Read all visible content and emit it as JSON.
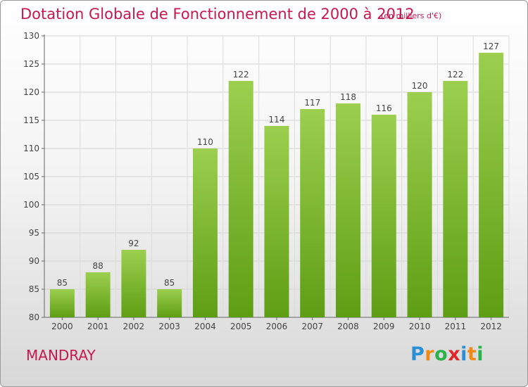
{
  "header": {
    "title": "Dotation Globale de Fonctionnement de 2000 à 2012",
    "unit": "(en milliers d'€)"
  },
  "footer": {
    "commune": "MANDRAY",
    "logo_letters": [
      "P",
      "r",
      "o",
      "x",
      "i",
      "t",
      "i"
    ],
    "logo_colors": [
      "#2b8fd6",
      "#f08a16",
      "#2bb24a",
      "#e0262b",
      "#2b8fd6",
      "#f08a16",
      "#2bb24a"
    ]
  },
  "chart_data": {
    "type": "bar",
    "categories": [
      "2000",
      "2001",
      "2002",
      "2003",
      "2004",
      "2005",
      "2006",
      "2007",
      "2008",
      "2009",
      "2010",
      "2011",
      "2012"
    ],
    "values": [
      85,
      88,
      92,
      85,
      110,
      122,
      114,
      117,
      118,
      116,
      120,
      122,
      127
    ],
    "ylim": [
      80,
      130
    ],
    "yticks": [
      80,
      85,
      90,
      95,
      100,
      105,
      110,
      115,
      120,
      125,
      130
    ],
    "grid": true,
    "bar_color_top": "#9ccf4f",
    "bar_color_bottom": "#5e9e14",
    "label_color": "#444444"
  }
}
